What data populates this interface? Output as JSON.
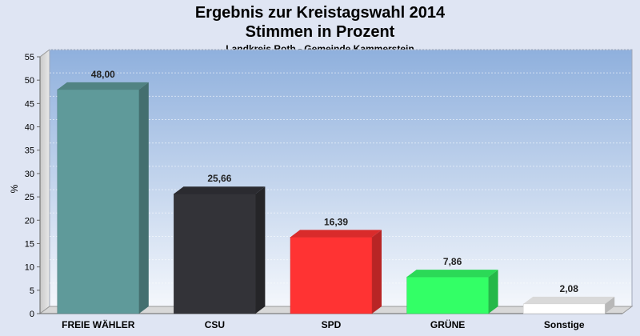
{
  "chart_data": {
    "type": "bar",
    "title": "Ergebnis zur Kreistagswahl 2014",
    "title_line2": "Stimmen in Prozent",
    "subtitle": "Landkreis Roth - Gemeinde Kammerstein",
    "ylabel": "%",
    "xlabel": "",
    "ylim": [
      0,
      55
    ],
    "yticks": [
      0,
      5,
      10,
      15,
      20,
      25,
      30,
      35,
      40,
      45,
      50,
      55
    ],
    "grid": true,
    "legend": "none",
    "categories": [
      "FREIE WÄHLER",
      "CSU",
      "SPD",
      "GRÜNE",
      "Sonstige"
    ],
    "values": [
      48.0,
      25.66,
      16.39,
      7.86,
      2.08
    ],
    "value_labels": [
      "48,00",
      "25,66",
      "16,39",
      "7,86",
      "2,08"
    ],
    "colors": [
      "#5f9a9a",
      "#333338",
      "#ff3333",
      "#33ff66",
      "#ffffff"
    ]
  }
}
